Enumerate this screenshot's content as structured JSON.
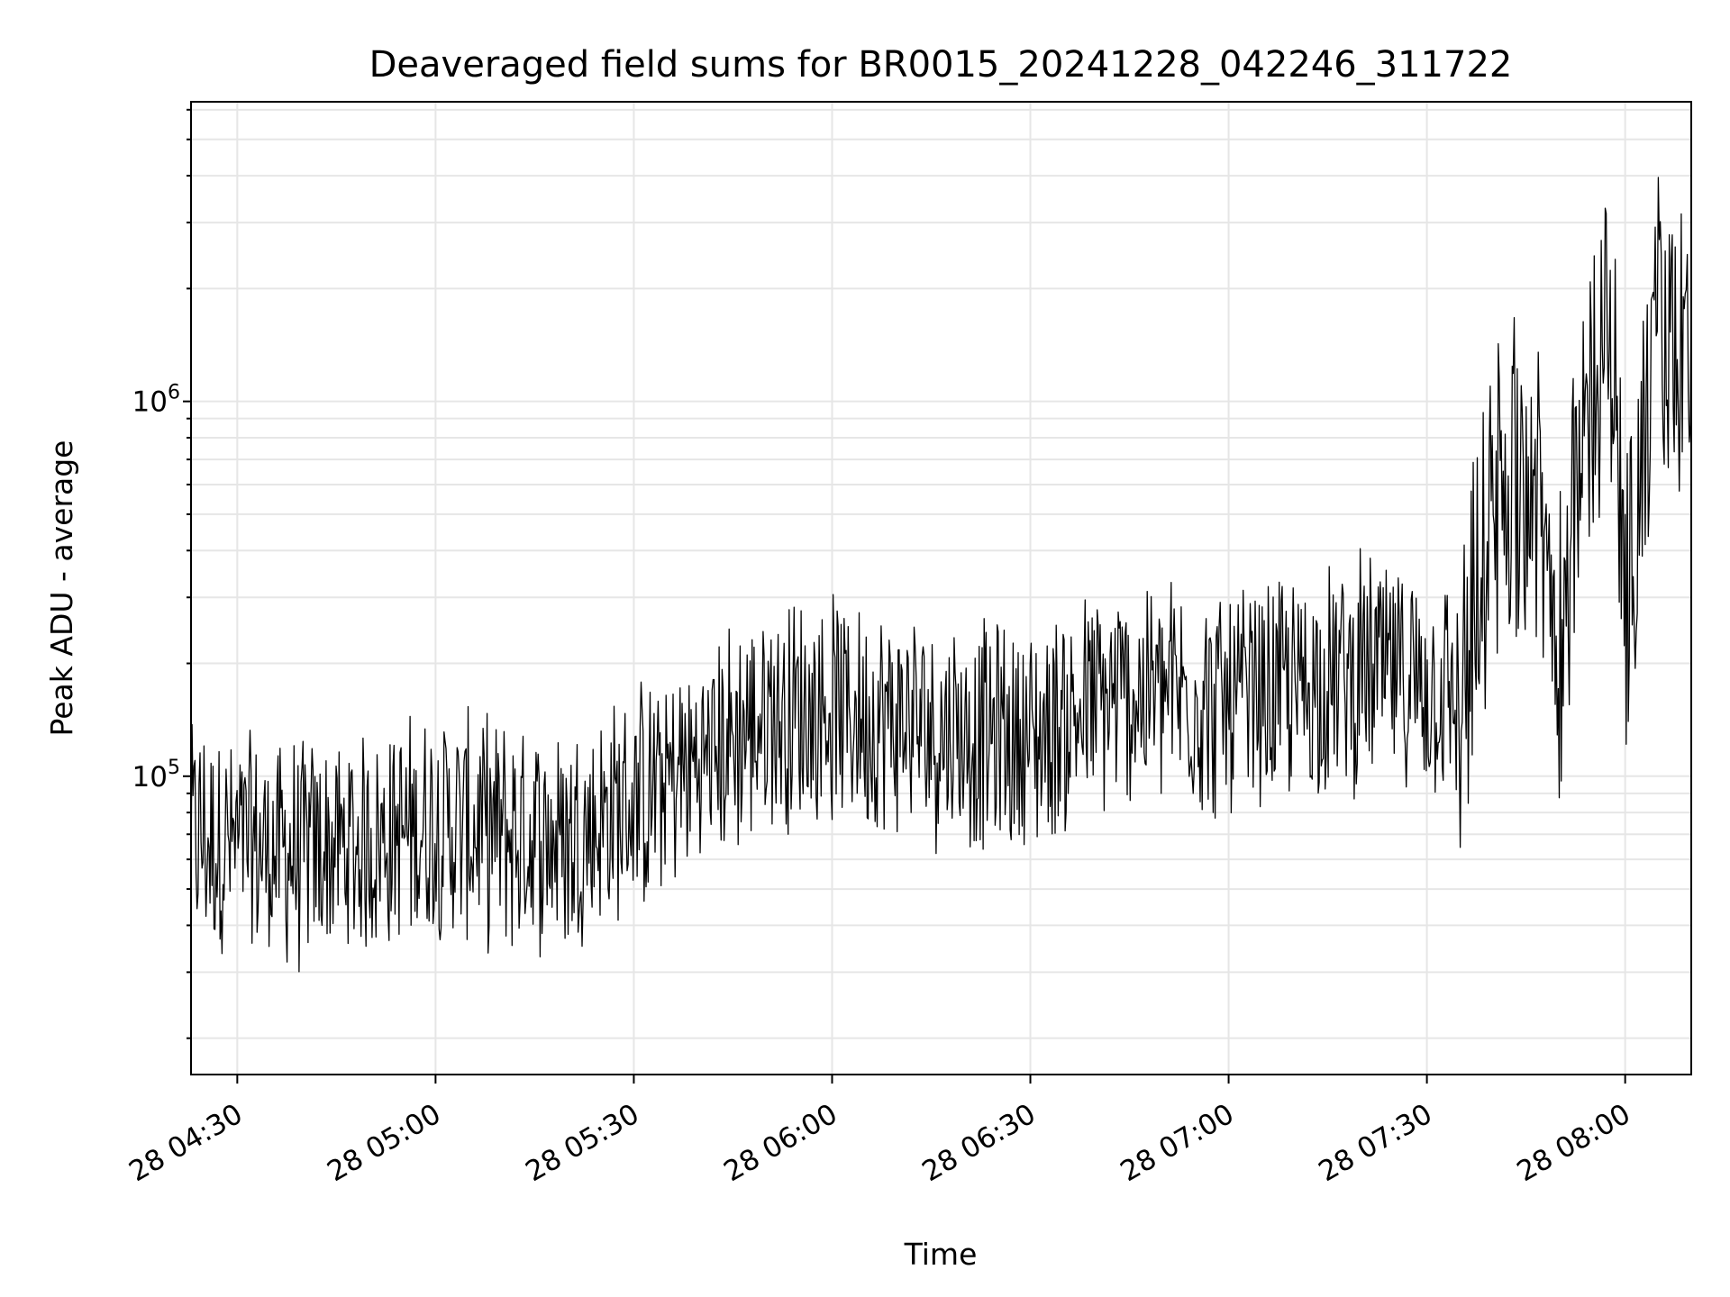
{
  "chart_data": {
    "type": "line",
    "title": "Deaveraged field sums for BR0015_20241228_042246_311722",
    "xlabel": "Time",
    "ylabel": "Peak ADU - average",
    "y_scale": "log",
    "grid": "on",
    "line_color": "#000000",
    "grid_color": "#e6e6e6",
    "xlim": [
      "28 04:23",
      "28 08:10"
    ],
    "ylim": [
      16000,
      6300000
    ],
    "x_ticks": [
      "28 04:30",
      "28 05:00",
      "28 05:30",
      "28 06:00",
      "28 06:30",
      "28 07:00",
      "28 07:30",
      "28 08:00"
    ],
    "y_ticks": [
      {
        "value": 100000,
        "base": "10",
        "exp": "5"
      },
      {
        "value": 1000000,
        "base": "10",
        "exp": "6"
      }
    ],
    "series": [
      {
        "x": [
          "28 04:23",
          "28 04:30",
          "28 04:40",
          "28 04:50",
          "28 05:00",
          "28 05:10",
          "28 05:20",
          "28 05:30",
          "28 05:40",
          "28 05:50",
          "28 06:00",
          "28 06:10",
          "28 06:20",
          "28 06:30",
          "28 06:40",
          "28 06:50",
          "28 07:00",
          "28 07:10",
          "28 07:20",
          "28 07:30",
          "28 07:35",
          "28 07:40",
          "28 07:45",
          "28 07:50",
          "28 07:55",
          "28 07:58",
          "28 08:00",
          "28 08:05",
          "28 08:10"
        ],
        "y": [
          70000,
          65000,
          62000,
          66000,
          75000,
          70000,
          68000,
          85000,
          110000,
          145000,
          150000,
          140000,
          130000,
          125000,
          155000,
          170000,
          150000,
          170000,
          190000,
          180000,
          160000,
          500000,
          700000,
          250000,
          1100000,
          1500000,
          300000,
          1500000,
          1200000
        ]
      }
    ]
  }
}
